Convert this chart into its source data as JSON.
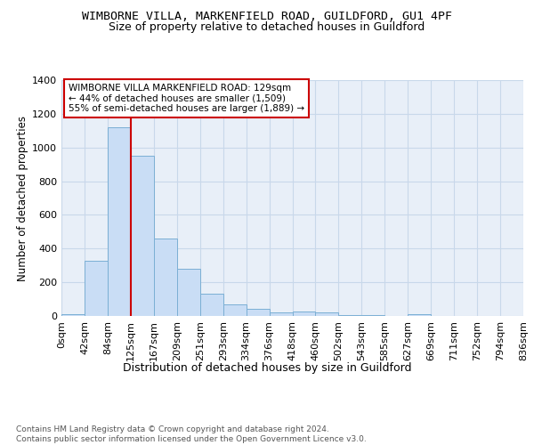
{
  "title1": "WIMBORNE VILLA, MARKENFIELD ROAD, GUILDFORD, GU1 4PF",
  "title2": "Size of property relative to detached houses in Guildford",
  "xlabel": "Distribution of detached houses by size in Guildford",
  "ylabel": "Number of detached properties",
  "bar_values": [
    10,
    325,
    1120,
    950,
    460,
    280,
    130,
    70,
    40,
    20,
    25,
    20,
    5,
    3,
    2,
    10,
    2,
    1,
    1,
    0
  ],
  "bar_labels": [
    "0sqm",
    "42sqm",
    "84sqm",
    "125sqm",
    "167sqm",
    "209sqm",
    "251sqm",
    "293sqm",
    "334sqm",
    "376sqm",
    "418sqm",
    "460sqm",
    "502sqm",
    "543sqm",
    "585sqm",
    "627sqm",
    "669sqm",
    "711sqm",
    "752sqm",
    "794sqm",
    "836sqm"
  ],
  "bar_color": "#c9ddf5",
  "bar_edge_color": "#7bafd4",
  "grid_color": "#c8d8ea",
  "bg_color": "#e8eff8",
  "vline_x_index": 3,
  "vline_color": "#cc0000",
  "annotation_text": "WIMBORNE VILLA MARKENFIELD ROAD: 129sqm\n← 44% of detached houses are smaller (1,509)\n55% of semi-detached houses are larger (1,889) →",
  "annotation_box_color": "#cc0000",
  "ylim": [
    0,
    1400
  ],
  "yticks": [
    0,
    200,
    400,
    600,
    800,
    1000,
    1200,
    1400
  ],
  "footer": "Contains HM Land Registry data © Crown copyright and database right 2024.\nContains public sector information licensed under the Open Government Licence v3.0.",
  "title1_fontsize": 9.5,
  "title2_fontsize": 9,
  "xlabel_fontsize": 9,
  "ylabel_fontsize": 8.5,
  "tick_fontsize": 8,
  "annot_fontsize": 7.5
}
